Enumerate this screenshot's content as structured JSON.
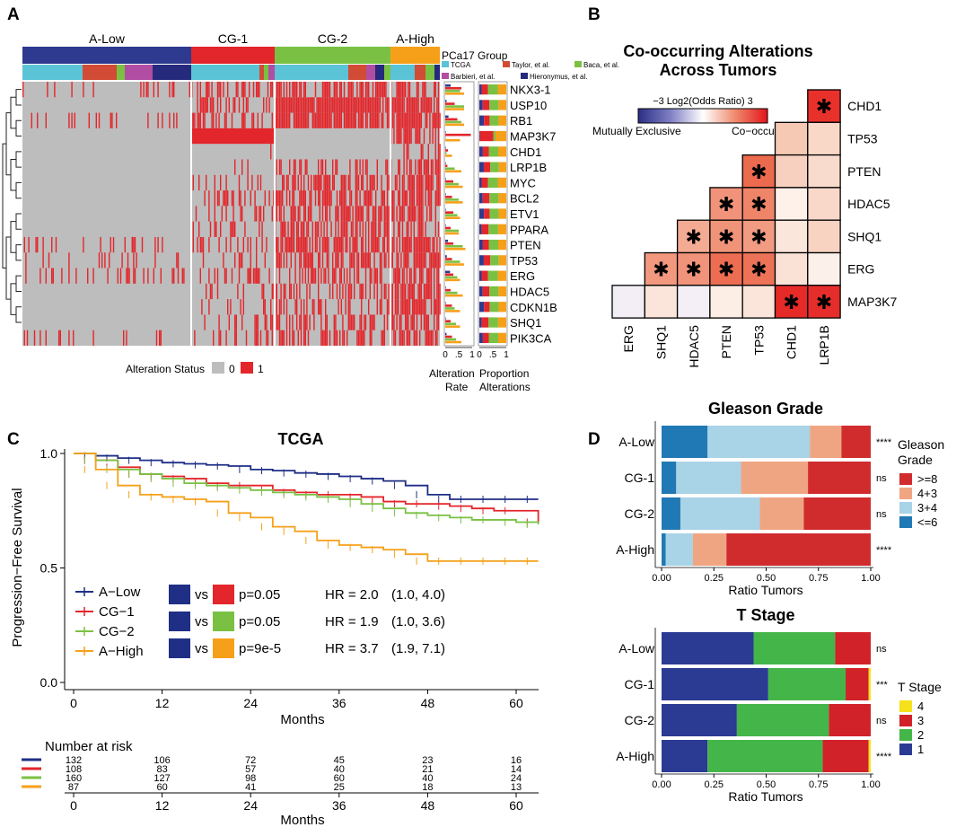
{
  "colors": {
    "red": "#e3262b",
    "gray": "#bdbdbd",
    "blue": "#2e3a8f",
    "green": "#7ac143",
    "orange": "#f6a01a",
    "teal": "#5bc3d6",
    "darkblue": "#1f2f86",
    "brick": "#d24b34",
    "magenta": "#b14da2",
    "navy": "#262a7c",
    "lightblue": "#a9d3e6",
    "peach": "#f0a582",
    "deepred": "#d02c2e",
    "steel": "#2079b4",
    "yellow": "#f5e21b",
    "t_blue": "#2b3a93",
    "t_green": "#44b649",
    "t_red": "#d12229"
  },
  "panel_a": {
    "letter": "A",
    "groups": [
      "A-Low",
      "CG-1",
      "CG-2",
      "A-High"
    ],
    "pca17_title": "PCa17 Group",
    "cohorts": [
      "TCGA",
      "Taylor, et al.",
      "Baca, et al.",
      "Barbieri, et al.",
      "Hieronymus, et al."
    ],
    "genes": [
      "NKX3-1",
      "USP10",
      "RB1",
      "MAP3K7",
      "CHD1",
      "LRP1B",
      "MYC",
      "BCL2",
      "ETV1",
      "PPARA",
      "PTEN",
      "TP53",
      "ERG",
      "HDAC5",
      "CDKN1B",
      "SHQ1",
      "PIK3CA"
    ],
    "status_label": "Alteration Status",
    "status_0": "0",
    "status_1": "1",
    "rate_ticks": [
      "0",
      ".5",
      "1"
    ],
    "prop_ticks": [
      "0",
      ".5",
      "1"
    ],
    "rate_label_1": "Alteration",
    "rate_label_2": "Rate",
    "prop_label_1": "Proportion",
    "prop_label_2": "Alterations"
  },
  "panel_b": {
    "letter": "B",
    "title_1": "Co-occurring Alterations",
    "title_2": "Across Tumors",
    "legend_title": "−3  Log2(Odds Ratio)  3",
    "legend_left": "Mutually Exclusive",
    "legend_right": "Co−occurring",
    "x_genes": [
      "ERG",
      "SHQ1",
      "HDAC5",
      "PTEN",
      "TP53",
      "CHD1",
      "LRP1B"
    ],
    "y_genes": [
      "CHD1",
      "TP53",
      "PTEN",
      "HDAC5",
      "SHQ1",
      "ERG",
      "MAP3K7"
    ],
    "asterisk": "✱",
    "cells": [
      {
        "row": 0,
        "col": 6,
        "color": "#e8312b",
        "sig": true
      },
      {
        "row": 1,
        "col": 5,
        "color": "#f6c9b4",
        "sig": false
      },
      {
        "row": 1,
        "col": 6,
        "color": "#f9d8c8",
        "sig": false
      },
      {
        "row": 2,
        "col": 4,
        "color": "#ec6a4e",
        "sig": true
      },
      {
        "row": 2,
        "col": 5,
        "color": "#f8d0bf",
        "sig": false
      },
      {
        "row": 2,
        "col": 6,
        "color": "#f9dbcd",
        "sig": false
      },
      {
        "row": 3,
        "col": 3,
        "color": "#f0937a",
        "sig": true
      },
      {
        "row": 3,
        "col": 4,
        "color": "#ee8468",
        "sig": true
      },
      {
        "row": 3,
        "col": 5,
        "color": "#fdf1ea",
        "sig": false
      },
      {
        "row": 3,
        "col": 6,
        "color": "#f9d8c9",
        "sig": false
      },
      {
        "row": 4,
        "col": 2,
        "color": "#f3ab93",
        "sig": true
      },
      {
        "row": 4,
        "col": 3,
        "color": "#f09479",
        "sig": true
      },
      {
        "row": 4,
        "col": 4,
        "color": "#f19c82",
        "sig": true
      },
      {
        "row": 4,
        "col": 5,
        "color": "#fbe6dc",
        "sig": false
      },
      {
        "row": 4,
        "col": 6,
        "color": "#f8d3c2",
        "sig": false
      },
      {
        "row": 5,
        "col": 1,
        "color": "#f1987e",
        "sig": true
      },
      {
        "row": 5,
        "col": 2,
        "color": "#f0937a",
        "sig": true
      },
      {
        "row": 5,
        "col": 3,
        "color": "#ec6d52",
        "sig": true
      },
      {
        "row": 5,
        "col": 4,
        "color": "#ed7358",
        "sig": true
      },
      {
        "row": 5,
        "col": 5,
        "color": "#fbe2d6",
        "sig": false
      },
      {
        "row": 5,
        "col": 6,
        "color": "#fcf0ea",
        "sig": false
      },
      {
        "row": 6,
        "col": 0,
        "color": "#f3eef6",
        "sig": false
      },
      {
        "row": 6,
        "col": 1,
        "color": "#fbe4da",
        "sig": false
      },
      {
        "row": 6,
        "col": 2,
        "color": "#f4eff7",
        "sig": false
      },
      {
        "row": 6,
        "col": 3,
        "color": "#fcede5",
        "sig": false
      },
      {
        "row": 6,
        "col": 4,
        "color": "#fbe5db",
        "sig": false
      },
      {
        "row": 6,
        "col": 5,
        "color": "#e62a27",
        "sig": true
      },
      {
        "row": 6,
        "col": 6,
        "color": "#e52e2b",
        "sig": true
      }
    ]
  },
  "panel_c": {
    "letter": "C",
    "title": "TCGA",
    "ylabel": "Progression−Free Survival",
    "xlabel": "Months",
    "y_ticks": [
      "1.0",
      "0.5",
      "0.0"
    ],
    "x_ticks": [
      "0",
      "12",
      "24",
      "36",
      "48",
      "60"
    ],
    "legend": [
      "A−Low",
      "CG−1",
      "CG−2",
      "A−High"
    ],
    "vs": "vs",
    "comparisons": [
      {
        "p": "p=0.05",
        "hr": "HR = 2.0",
        "ci": "(1.0, 4.0)"
      },
      {
        "p": "p=0.05",
        "hr": "HR = 1.9",
        "ci": "(1.0, 3.6)"
      },
      {
        "p": "p=9e-5",
        "hr": "HR = 3.7",
        "ci": "(1.9, 7.1)"
      }
    ],
    "risk_title": "Number at risk",
    "risk": [
      [
        "132",
        "106",
        "72",
        "45",
        "23",
        "16"
      ],
      [
        "108",
        "83",
        "57",
        "40",
        "21",
        "14"
      ],
      [
        "160",
        "127",
        "98",
        "60",
        "40",
        "24"
      ],
      [
        "87",
        "60",
        "41",
        "25",
        "18",
        "13"
      ]
    ]
  },
  "chart_data": [
    {
      "type": "line",
      "title": "TCGA",
      "xlabel": "Months",
      "ylabel": "Progression−Free Survival",
      "xlim": [
        0,
        63
      ],
      "ylim": [
        0,
        1
      ],
      "series": [
        {
          "name": "A−Low",
          "x": [
            0,
            3,
            6,
            9,
            12,
            15,
            18,
            21,
            24,
            27,
            30,
            33,
            36,
            39,
            42,
            45,
            48,
            51,
            54,
            57,
            60,
            63
          ],
          "y": [
            1.0,
            0.99,
            0.98,
            0.97,
            0.96,
            0.955,
            0.95,
            0.945,
            0.93,
            0.925,
            0.915,
            0.91,
            0.9,
            0.89,
            0.88,
            0.86,
            0.82,
            0.8,
            0.8,
            0.8,
            0.8,
            0.8
          ]
        },
        {
          "name": "CG−1",
          "x": [
            0,
            3,
            6,
            9,
            12,
            15,
            18,
            21,
            24,
            27,
            30,
            33,
            36,
            39,
            42,
            45,
            48,
            51,
            54,
            57,
            60,
            63
          ],
          "y": [
            1.0,
            0.97,
            0.94,
            0.91,
            0.9,
            0.89,
            0.87,
            0.86,
            0.86,
            0.84,
            0.83,
            0.82,
            0.82,
            0.81,
            0.79,
            0.78,
            0.78,
            0.77,
            0.76,
            0.75,
            0.75,
            0.7
          ]
        },
        {
          "name": "CG−2",
          "x": [
            0,
            3,
            6,
            9,
            12,
            15,
            18,
            21,
            24,
            27,
            30,
            33,
            36,
            39,
            42,
            45,
            48,
            51,
            54,
            57,
            60,
            63
          ],
          "y": [
            1.0,
            0.97,
            0.93,
            0.91,
            0.89,
            0.87,
            0.86,
            0.85,
            0.84,
            0.83,
            0.82,
            0.81,
            0.8,
            0.78,
            0.76,
            0.74,
            0.73,
            0.72,
            0.71,
            0.71,
            0.7,
            0.69
          ]
        },
        {
          "name": "A−High",
          "x": [
            0,
            3,
            6,
            9,
            12,
            15,
            18,
            21,
            24,
            27,
            30,
            33,
            36,
            39,
            42,
            45,
            48,
            51,
            54,
            57,
            60,
            63
          ],
          "y": [
            1.0,
            0.93,
            0.86,
            0.82,
            0.81,
            0.8,
            0.79,
            0.74,
            0.72,
            0.68,
            0.66,
            0.62,
            0.6,
            0.59,
            0.58,
            0.56,
            0.53,
            0.53,
            0.53,
            0.53,
            0.53,
            0.53
          ]
        }
      ]
    },
    {
      "type": "bar",
      "stacked": true,
      "orientation": "horizontal",
      "title": "Gleason Grade",
      "xlabel": "Ratio Tumors",
      "x_ticks": [
        "0.00",
        "0.25",
        "0.50",
        "0.75",
        "1.00"
      ],
      "categories": [
        "A-Low",
        "CG-1",
        "CG-2",
        "A-High"
      ],
      "significance": [
        "****",
        "ns",
        "ns",
        "****"
      ],
      "legend_title_1": "Gleason",
      "legend_title_2": "Grade",
      "series": [
        {
          "name": "<=6",
          "color": "#2079b4",
          "values": [
            0.22,
            0.07,
            0.09,
            0.02
          ]
        },
        {
          "name": "3+4",
          "color": "#a9d3e6",
          "values": [
            0.49,
            0.31,
            0.38,
            0.13
          ]
        },
        {
          "name": "4+3",
          "color": "#f0a582",
          "values": [
            0.15,
            0.32,
            0.21,
            0.16
          ]
        },
        {
          "name": ">=8",
          "color": "#d02c2e",
          "values": [
            0.14,
            0.3,
            0.32,
            0.69
          ]
        }
      ]
    },
    {
      "type": "bar",
      "stacked": true,
      "orientation": "horizontal",
      "title": "T Stage",
      "xlabel": "Ratio Tumors",
      "x_ticks": [
        "0.00",
        "0.25",
        "0.50",
        "0.75",
        "1.00"
      ],
      "categories": [
        "A-Low",
        "CG-1",
        "CG-2",
        "A-High"
      ],
      "significance": [
        "ns",
        "***",
        "ns",
        "****"
      ],
      "legend_title_1": "T Stage",
      "legend_title_2": "",
      "series": [
        {
          "name": "1",
          "color": "#2b3a93",
          "values": [
            0.44,
            0.51,
            0.36,
            0.22
          ]
        },
        {
          "name": "2",
          "color": "#44b649",
          "values": [
            0.39,
            0.37,
            0.44,
            0.55
          ]
        },
        {
          "name": "3",
          "color": "#d12229",
          "values": [
            0.17,
            0.11,
            0.2,
            0.22
          ]
        },
        {
          "name": "4",
          "color": "#f5e21b",
          "values": [
            0.0,
            0.01,
            0.0,
            0.01
          ]
        }
      ]
    }
  ],
  "panel_d": {
    "letter": "D",
    "legend_gleason_order": [
      ">=8",
      "4+3",
      "3+4",
      "<=6"
    ],
    "legend_tstage_order": [
      "4",
      "3",
      "2",
      "1"
    ]
  }
}
